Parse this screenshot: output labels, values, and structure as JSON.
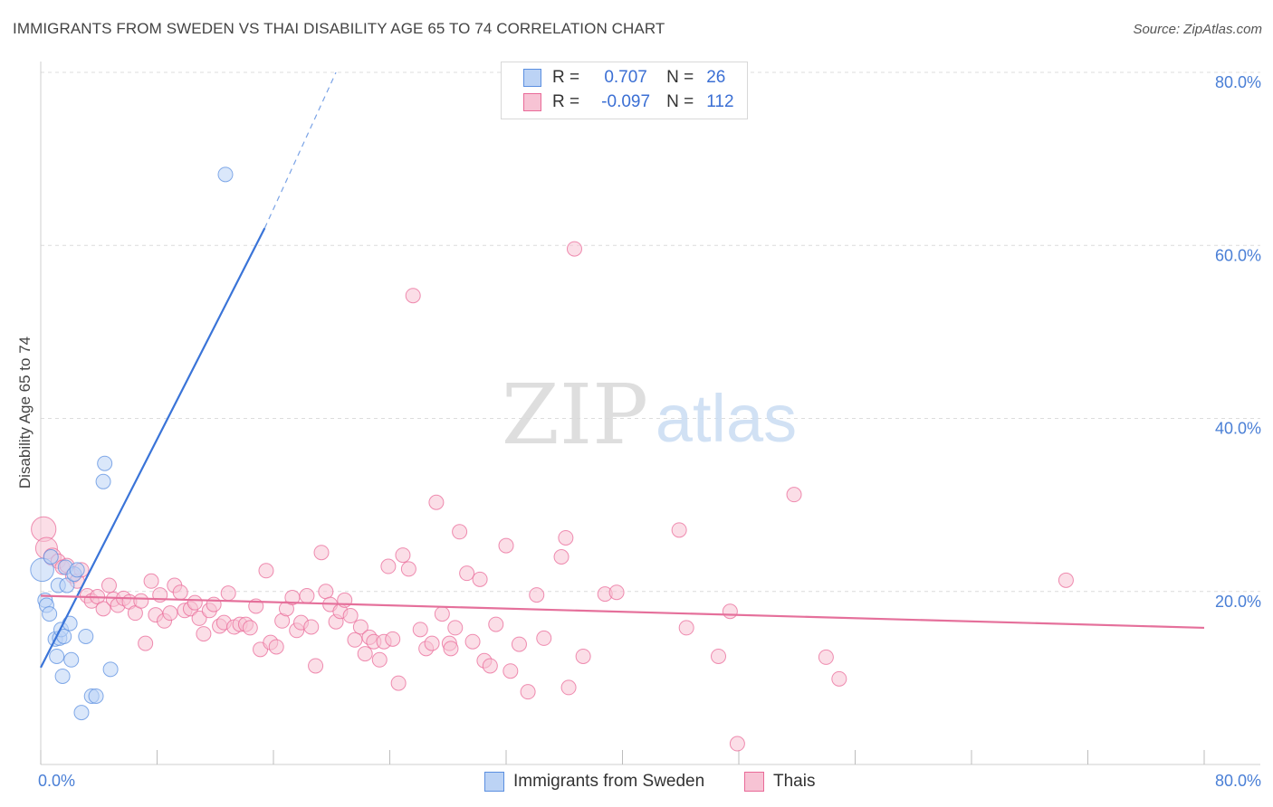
{
  "title": "IMMIGRANTS FROM SWEDEN VS THAI DISABILITY AGE 65 TO 74 CORRELATION CHART",
  "source": "Source: ZipAtlas.com",
  "watermark": {
    "zip": "ZIP",
    "atlas": "atlas"
  },
  "legend": {
    "sweden": {
      "r_label": "R =",
      "r_value": "0.707",
      "n_label": "N =",
      "n_value": "26",
      "color": "#5b8fe0"
    },
    "thai": {
      "r_label": "R =",
      "r_value": "-0.097",
      "n_label": "N =",
      "n_value": "112",
      "color": "#e96a98"
    }
  },
  "bottom_legend": {
    "sweden": "Immigrants from Sweden",
    "thai": "Thais"
  },
  "chart_data": {
    "type": "scatter",
    "title": "IMMIGRANTS FROM SWEDEN VS THAI DISABILITY AGE 65 TO 74 CORRELATION CHART",
    "xlabel": "",
    "ylabel": "Disability Age 65 to 74",
    "xlim": [
      0,
      80
    ],
    "ylim": [
      0,
      80
    ],
    "x_tick_labels": [
      "0.0%",
      "80.0%"
    ],
    "y_tick_labels": [
      "20.0%",
      "40.0%",
      "60.0%",
      "80.0%"
    ],
    "y_ticks": [
      20,
      40,
      60,
      80
    ],
    "grid": true,
    "legend_position": "top-center",
    "series": [
      {
        "name": "Immigrants from Sweden",
        "color": "#5b8fe0",
        "fill": "#bcd3f5",
        "trend": {
          "x0": 0,
          "y0": 11.2,
          "x1": 15.4,
          "y1": 62.0,
          "dashed_to_x": 20.3,
          "dashed_to_y": 80.0
        },
        "points": [
          [
            0.1,
            22.5,
            1.6
          ],
          [
            0.3,
            19.0,
            1
          ],
          [
            0.4,
            18.4,
            1
          ],
          [
            0.6,
            17.4,
            1
          ],
          [
            0.7,
            24.0,
            1
          ],
          [
            1.0,
            14.5,
            1
          ],
          [
            1.1,
            12.5,
            1
          ],
          [
            1.2,
            20.7,
            1
          ],
          [
            1.3,
            14.6,
            1
          ],
          [
            1.4,
            15.6,
            1
          ],
          [
            1.5,
            10.2,
            1
          ],
          [
            1.6,
            14.8,
            1
          ],
          [
            1.7,
            22.8,
            1
          ],
          [
            1.8,
            20.7,
            1
          ],
          [
            2.0,
            16.3,
            1
          ],
          [
            2.1,
            12.1,
            1
          ],
          [
            2.3,
            22.0,
            1
          ],
          [
            2.5,
            22.5,
            1
          ],
          [
            2.8,
            6.0,
            1
          ],
          [
            3.1,
            14.8,
            1
          ],
          [
            3.5,
            7.9,
            1
          ],
          [
            3.8,
            7.9,
            1
          ],
          [
            4.3,
            32.7,
            1
          ],
          [
            4.4,
            34.8,
            1
          ],
          [
            4.8,
            11.0,
            1
          ],
          [
            12.7,
            68.2,
            1
          ]
        ]
      },
      {
        "name": "Thais",
        "color": "#e96a98",
        "fill": "#f7c3d4",
        "trend": {
          "x0": 0,
          "y0": 19.5,
          "x1": 80,
          "y1": 15.8
        },
        "points": [
          [
            0.2,
            27.2,
            1.7
          ],
          [
            0.4,
            25.0,
            1.5
          ],
          [
            0.8,
            24.0,
            1.2
          ],
          [
            1.2,
            23.5,
            1
          ],
          [
            1.5,
            22.8,
            1
          ],
          [
            1.8,
            23.0,
            1
          ],
          [
            2.2,
            21.8,
            1
          ],
          [
            2.5,
            21.2,
            1
          ],
          [
            2.8,
            22.5,
            1
          ],
          [
            3.2,
            19.5,
            1
          ],
          [
            3.5,
            18.9,
            1
          ],
          [
            3.9,
            19.4,
            1
          ],
          [
            4.3,
            18.0,
            1
          ],
          [
            4.7,
            20.7,
            1
          ],
          [
            5.0,
            19.1,
            1
          ],
          [
            5.3,
            18.4,
            1
          ],
          [
            5.7,
            19.2,
            1
          ],
          [
            6.1,
            18.8,
            1
          ],
          [
            6.5,
            17.5,
            1
          ],
          [
            6.9,
            18.9,
            1
          ],
          [
            7.2,
            14.0,
            1
          ],
          [
            7.6,
            21.2,
            1
          ],
          [
            7.9,
            17.3,
            1
          ],
          [
            8.2,
            19.6,
            1
          ],
          [
            8.5,
            16.6,
            1
          ],
          [
            8.9,
            17.5,
            1
          ],
          [
            9.2,
            20.7,
            1
          ],
          [
            9.6,
            19.9,
            1
          ],
          [
            9.9,
            17.8,
            1
          ],
          [
            10.3,
            18.0,
            1
          ],
          [
            10.6,
            18.7,
            1
          ],
          [
            10.9,
            16.9,
            1
          ],
          [
            11.2,
            15.1,
            1
          ],
          [
            11.6,
            17.8,
            1
          ],
          [
            11.9,
            18.5,
            1
          ],
          [
            12.3,
            16.0,
            1
          ],
          [
            12.6,
            16.4,
            1
          ],
          [
            12.9,
            19.8,
            1
          ],
          [
            13.3,
            15.9,
            1
          ],
          [
            13.7,
            16.2,
            1
          ],
          [
            14.1,
            16.2,
            1
          ],
          [
            14.4,
            15.8,
            1
          ],
          [
            14.8,
            18.3,
            1
          ],
          [
            15.1,
            13.3,
            1
          ],
          [
            15.5,
            22.4,
            1
          ],
          [
            15.8,
            14.1,
            1
          ],
          [
            16.2,
            13.6,
            1
          ],
          [
            16.6,
            16.6,
            1
          ],
          [
            16.9,
            18.0,
            1
          ],
          [
            17.3,
            19.3,
            1
          ],
          [
            17.6,
            15.5,
            1
          ],
          [
            17.9,
            16.4,
            1
          ],
          [
            18.3,
            19.5,
            1
          ],
          [
            18.6,
            15.9,
            1
          ],
          [
            18.9,
            11.4,
            1
          ],
          [
            19.3,
            24.5,
            1
          ],
          [
            19.6,
            20.0,
            1
          ],
          [
            19.9,
            18.5,
            1
          ],
          [
            20.3,
            16.5,
            1
          ],
          [
            20.6,
            17.7,
            1
          ],
          [
            20.9,
            19.0,
            1
          ],
          [
            21.3,
            17.2,
            1
          ],
          [
            21.6,
            14.4,
            1
          ],
          [
            22.0,
            15.9,
            1
          ],
          [
            22.3,
            12.8,
            1
          ],
          [
            22.6,
            14.7,
            1
          ],
          [
            22.9,
            14.2,
            1
          ],
          [
            23.3,
            12.1,
            1
          ],
          [
            23.6,
            14.2,
            1
          ],
          [
            23.9,
            22.9,
            1
          ],
          [
            24.2,
            14.5,
            1
          ],
          [
            24.6,
            9.4,
            1
          ],
          [
            24.9,
            24.2,
            1
          ],
          [
            25.3,
            22.6,
            1
          ],
          [
            25.6,
            54.2,
            1
          ],
          [
            26.1,
            15.6,
            1
          ],
          [
            26.5,
            13.4,
            1
          ],
          [
            26.9,
            14.0,
            1
          ],
          [
            27.2,
            30.3,
            1
          ],
          [
            27.6,
            17.4,
            1
          ],
          [
            28.1,
            14.0,
            1
          ],
          [
            28.5,
            15.8,
            1
          ],
          [
            28.8,
            26.9,
            1
          ],
          [
            29.3,
            22.1,
            1
          ],
          [
            29.7,
            14.2,
            1
          ],
          [
            30.2,
            21.4,
            1
          ],
          [
            30.5,
            12.0,
            1
          ],
          [
            30.9,
            11.4,
            1
          ],
          [
            31.3,
            16.2,
            1
          ],
          [
            32.0,
            25.3,
            1
          ],
          [
            32.3,
            10.8,
            1
          ],
          [
            32.9,
            13.9,
            1
          ],
          [
            33.5,
            8.4,
            1
          ],
          [
            34.1,
            19.6,
            1
          ],
          [
            34.6,
            14.6,
            1
          ],
          [
            35.8,
            24.0,
            1
          ],
          [
            36.1,
            26.2,
            1
          ],
          [
            36.3,
            8.9,
            1
          ],
          [
            36.7,
            59.6,
            1
          ],
          [
            37.3,
            12.5,
            1
          ],
          [
            38.8,
            19.7,
            1
          ],
          [
            39.6,
            19.9,
            1
          ],
          [
            43.9,
            27.1,
            1
          ],
          [
            44.4,
            15.8,
            1
          ],
          [
            46.6,
            12.5,
            1
          ],
          [
            47.4,
            17.7,
            1
          ],
          [
            47.9,
            2.4,
            1
          ],
          [
            51.8,
            31.2,
            1
          ],
          [
            54.0,
            12.4,
            1
          ],
          [
            54.9,
            9.9,
            1
          ],
          [
            70.5,
            21.3,
            1
          ],
          [
            28.2,
            13.4,
            1
          ]
        ]
      }
    ]
  }
}
